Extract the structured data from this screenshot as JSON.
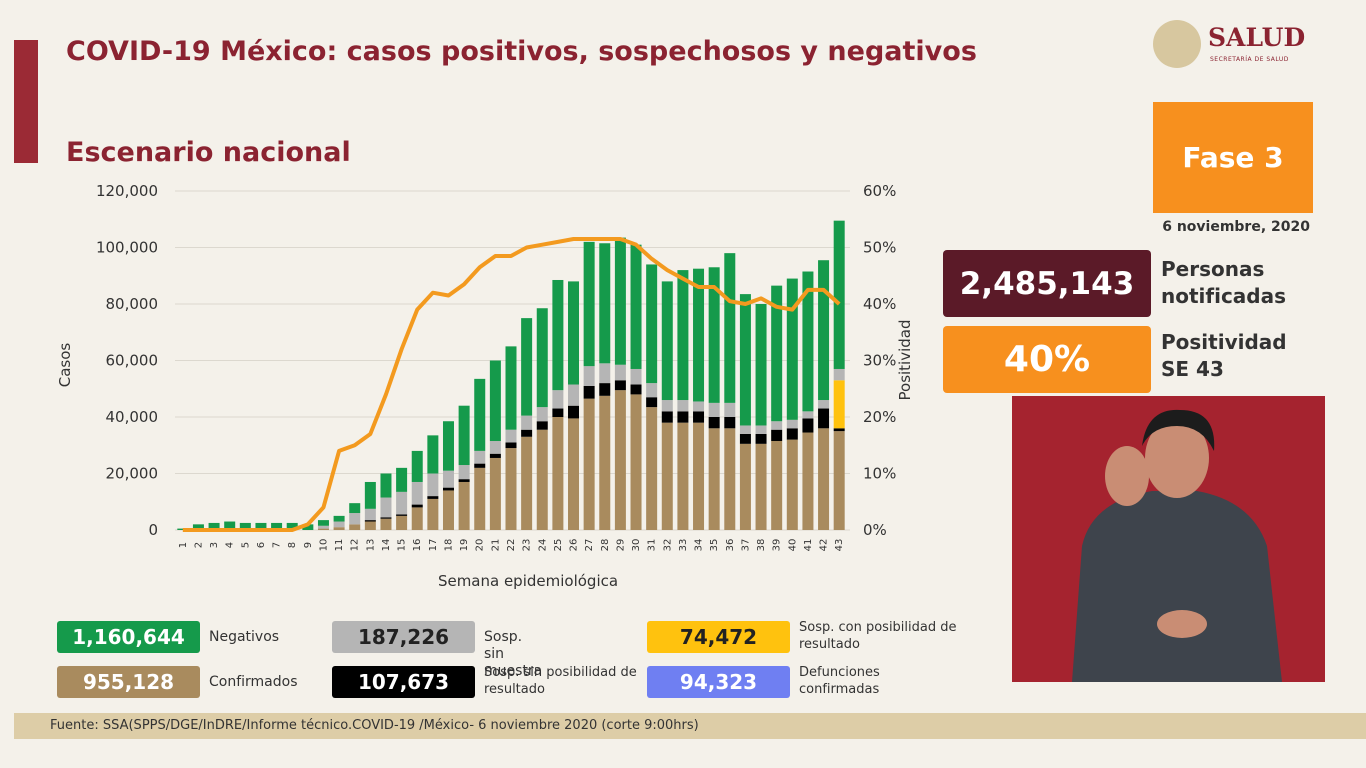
{
  "header": {
    "title": "COVID-19 México: casos positivos, sospechosos y negativos",
    "subtitle": "Escenario nacional",
    "logo": "SALUD",
    "logo_sub": "SECRETARÍA DE SALUD"
  },
  "panel": {
    "phase": "Fase 3",
    "date": "6 noviembre, 2020",
    "notified": "2,485,143",
    "notified_label": "Personas notificadas",
    "positivity": "40%",
    "positivity_label": "Positividad SE 43"
  },
  "chart_data": {
    "type": "bar",
    "stacked": true,
    "y_label": "Casos",
    "y2_label": "Positividad",
    "x_label": "Semana epidemiológica",
    "categories": [
      "1",
      "2",
      "3",
      "4",
      "5",
      "6",
      "7",
      "8",
      "9",
      "10",
      "11",
      "12",
      "13",
      "14",
      "15",
      "16",
      "17",
      "18",
      "19",
      "20",
      "21",
      "22",
      "23",
      "24",
      "25",
      "26",
      "27",
      "28",
      "29",
      "30",
      "31",
      "32",
      "33",
      "34",
      "35",
      "36",
      "37",
      "38",
      "39",
      "40",
      "41",
      "42",
      "43"
    ],
    "ylim": [
      0,
      120000
    ],
    "yticks": [
      {
        "value": 0,
        "label": "0"
      },
      {
        "value": 20000,
        "label": "20,000"
      },
      {
        "value": 40000,
        "label": "40,000"
      },
      {
        "value": 60000,
        "label": "60,000"
      },
      {
        "value": 80000,
        "label": "80,000"
      },
      {
        "value": 100000,
        "label": "100,000"
      },
      {
        "value": 120000,
        "label": "120,000"
      }
    ],
    "y2lim": [
      0,
      60
    ],
    "y2ticks": [
      {
        "value": 0,
        "label": "0%"
      },
      {
        "value": 10,
        "label": "10%"
      },
      {
        "value": 20,
        "label": "20%"
      },
      {
        "value": 30,
        "label": "30%"
      },
      {
        "value": 40,
        "label": "40%"
      },
      {
        "value": 50,
        "label": "50%"
      },
      {
        "value": 60,
        "label": "60%"
      }
    ],
    "grid": true,
    "series": [
      {
        "name": "Confirmados",
        "total": "955,128",
        "color": "#a98b5e",
        "values": [
          0,
          0,
          0,
          0,
          0,
          0,
          0,
          0,
          0,
          500,
          1000,
          2000,
          3000,
          4000,
          5000,
          8000,
          11000,
          14000,
          17000,
          22000,
          25500,
          29000,
          33000,
          35500,
          40000,
          39500,
          46500,
          47500,
          49500,
          48000,
          43500,
          38000,
          38000,
          38000,
          36000,
          36000,
          30500,
          30500,
          31500,
          32000,
          34500,
          36000,
          35000
        ]
      },
      {
        "name": "Sosp. sin posibilidad de resultado",
        "total": "107,673",
        "color": "#000000",
        "values": [
          0,
          0,
          0,
          0,
          0,
          0,
          0,
          0,
          0,
          0,
          0,
          0,
          500,
          500,
          500,
          1000,
          1000,
          1000,
          1000,
          1500,
          1500,
          2000,
          2500,
          3000,
          3000,
          4500,
          4500,
          4500,
          3500,
          3500,
          3500,
          4000,
          4000,
          4000,
          4000,
          4000,
          3500,
          3500,
          4000,
          4000,
          5000,
          7000,
          1000
        ]
      },
      {
        "name": "Sosp. con posibilidad de resultado",
        "total": "74,472",
        "color": "#ffc20e",
        "values": [
          0,
          0,
          0,
          0,
          0,
          0,
          0,
          0,
          0,
          0,
          0,
          0,
          0,
          0,
          0,
          0,
          0,
          0,
          0,
          0,
          0,
          0,
          0,
          0,
          0,
          0,
          0,
          0,
          0,
          0,
          0,
          0,
          0,
          0,
          0,
          0,
          0,
          0,
          0,
          0,
          0,
          0,
          17000
        ]
      },
      {
        "name": "Sosp. sin muestra",
        "total": "187,226",
        "color": "#b5b5b5",
        "values": [
          0,
          0,
          0,
          0,
          0,
          0,
          0,
          0,
          0,
          1000,
          2000,
          4000,
          4000,
          7000,
          8000,
          8000,
          8000,
          6000,
          5000,
          4500,
          4500,
          4500,
          5000,
          5000,
          6500,
          7500,
          7000,
          7000,
          5500,
          5500,
          5000,
          4000,
          4000,
          3500,
          5000,
          5000,
          3000,
          3000,
          3000,
          3000,
          2500,
          3000,
          4000
        ]
      },
      {
        "name": "Negativos",
        "total": "1,160,644",
        "color": "#159a4b",
        "values": [
          500,
          2000,
          2500,
          3000,
          2500,
          2500,
          2500,
          2500,
          2000,
          2000,
          2000,
          3500,
          9500,
          8500,
          8500,
          11000,
          13500,
          17500,
          21000,
          25500,
          28500,
          29500,
          34500,
          35000,
          39000,
          36500,
          44000,
          42500,
          45000,
          44000,
          42000,
          42000,
          46000,
          47000,
          48000,
          53000,
          46500,
          43000,
          48000,
          50000,
          49500,
          49500,
          52500
        ]
      },
      {
        "type": "line",
        "axis": "y2",
        "color": "#f39a1f",
        "values": [
          0,
          0,
          0,
          0,
          0,
          0,
          0,
          0,
          1,
          4,
          14,
          15,
          17,
          24,
          32,
          39,
          42,
          41.5,
          43.5,
          46.5,
          48.5,
          48.5,
          50,
          50.5,
          51,
          51.5,
          51.5,
          51.5,
          51.5,
          50.5,
          48,
          46,
          44.5,
          43,
          43,
          40.5,
          40,
          41,
          39.5,
          39,
          42.5,
          42.5,
          40
        ]
      }
    ]
  },
  "deaths": {
    "total": "94,323",
    "label": "Defunciones confirmadas",
    "color": "#6f7ff2"
  },
  "footer": "Fuente: SSA(SPPS/DGE/InDRE/Informe técnico.COVID-19 /México- 6 noviembre 2020 (corte 9:00hrs)"
}
